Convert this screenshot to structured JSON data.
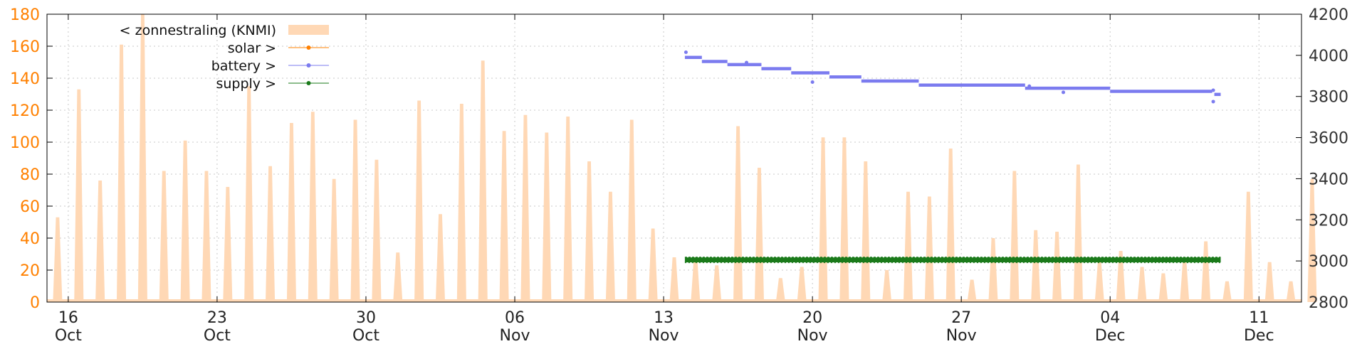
{
  "chart_data": {
    "type": "line",
    "title": "",
    "x_ticks": [
      {
        "day": "16",
        "month": "Oct",
        "date": "2023-10-16"
      },
      {
        "day": "23",
        "month": "Oct",
        "date": "2023-10-23"
      },
      {
        "day": "30",
        "month": "Oct",
        "date": "2023-10-30"
      },
      {
        "day": "06",
        "month": "Nov",
        "date": "2023-11-06"
      },
      {
        "day": "13",
        "month": "Nov",
        "date": "2023-11-13"
      },
      {
        "day": "20",
        "month": "Nov",
        "date": "2023-11-20"
      },
      {
        "day": "27",
        "month": "Nov",
        "date": "2023-11-27"
      },
      {
        "day": "04",
        "month": "Dec",
        "date": "2023-12-04"
      },
      {
        "day": "11",
        "month": "Dec",
        "date": "2023-12-11"
      }
    ],
    "x_range": [
      "2023-10-15",
      "2023-12-13"
    ],
    "y_left": {
      "range": [
        0,
        180
      ],
      "ticks": [
        "0",
        "20",
        "40",
        "60",
        "80",
        "100",
        "120",
        "140",
        "160",
        "180"
      ],
      "color": "#ff8000"
    },
    "y_right": {
      "range": [
        2800,
        4200
      ],
      "ticks": [
        "2800",
        "3000",
        "3200",
        "3400",
        "3600",
        "3800",
        "4000",
        "4200"
      ]
    },
    "grid": true,
    "legend": {
      "placement": "top-left",
      "entries": [
        {
          "label": "< zonnestraling (KNMI)",
          "style": "fill",
          "color": "#ffd8b5"
        },
        {
          "label": "solar >",
          "style": "line-point",
          "color": "#ff8000"
        },
        {
          "label": "battery >",
          "style": "line-point",
          "color": "#7b7bef"
        },
        {
          "label": "supply >",
          "style": "line-point",
          "color": "#1a7a1a"
        }
      ]
    },
    "series": [
      {
        "name": "zonnestraling (KNMI)",
        "axis": "left",
        "kind": "daily-peak",
        "color": "#ffd8b5",
        "dates": [
          "2023-10-15",
          "2023-10-16",
          "2023-10-17",
          "2023-10-18",
          "2023-10-19",
          "2023-10-20",
          "2023-10-21",
          "2023-10-22",
          "2023-10-23",
          "2023-10-24",
          "2023-10-25",
          "2023-10-26",
          "2023-10-27",
          "2023-10-28",
          "2023-10-29",
          "2023-10-30",
          "2023-10-31",
          "2023-11-01",
          "2023-11-02",
          "2023-11-03",
          "2023-11-04",
          "2023-11-05",
          "2023-11-06",
          "2023-11-07",
          "2023-11-08",
          "2023-11-09",
          "2023-11-10",
          "2023-11-11",
          "2023-11-12",
          "2023-11-13",
          "2023-11-14",
          "2023-11-15",
          "2023-11-16",
          "2023-11-17",
          "2023-11-18",
          "2023-11-19",
          "2023-11-20",
          "2023-11-21",
          "2023-11-22",
          "2023-11-23",
          "2023-11-24",
          "2023-11-25",
          "2023-11-26",
          "2023-11-27",
          "2023-11-28",
          "2023-11-29",
          "2023-11-30",
          "2023-12-01",
          "2023-12-02",
          "2023-12-03",
          "2023-12-04",
          "2023-12-05",
          "2023-12-06",
          "2023-12-07",
          "2023-12-08",
          "2023-12-09",
          "2023-12-10",
          "2023-12-11",
          "2023-12-12",
          "2023-12-13"
        ],
        "values": [
          53,
          133,
          76,
          161,
          180,
          82,
          101,
          82,
          72,
          135,
          85,
          112,
          119,
          77,
          114,
          89,
          31,
          126,
          55,
          124,
          151,
          107,
          117,
          106,
          116,
          88,
          69,
          114,
          46,
          28,
          28,
          23,
          110,
          84,
          15,
          22,
          103,
          103,
          88,
          20,
          69,
          66,
          96,
          14,
          40,
          82,
          45,
          44,
          86,
          25,
          32,
          22,
          18,
          27,
          38,
          13,
          69,
          25,
          13,
          77
        ]
      },
      {
        "name": "solar",
        "axis": "right",
        "color": "#ff8000",
        "points": []
      },
      {
        "name": "battery",
        "axis": "right",
        "color": "#7b7bef",
        "segments": [
          {
            "start": "2023-11-14",
            "end": "2023-11-14.8",
            "value": 3990
          },
          {
            "start": "2023-11-14.8",
            "end": "2023-11-16",
            "value": 3970
          },
          {
            "start": "2023-11-16",
            "end": "2023-11-17.6",
            "value": 3955
          },
          {
            "start": "2023-11-17.6",
            "end": "2023-11-19",
            "value": 3935
          },
          {
            "start": "2023-11-19",
            "end": "2023-11-20.8",
            "value": 3915
          },
          {
            "start": "2023-11-20.8",
            "end": "2023-11-22.3",
            "value": 3895
          },
          {
            "start": "2023-11-22.3",
            "end": "2023-11-25",
            "value": 3875
          },
          {
            "start": "2023-11-25",
            "end": "2023-11-30",
            "value": 3855
          },
          {
            "start": "2023-11-30",
            "end": "2023-12-04",
            "value": 3840
          },
          {
            "start": "2023-12-04",
            "end": "2023-12-08.8",
            "value": 3825
          },
          {
            "start": "2023-12-08.9",
            "end": "2023-12-09.2",
            "value": 3810
          }
        ],
        "outliers": [
          {
            "date": "2023-11-14.05",
            "value": 4015
          },
          {
            "date": "2023-11-16.9",
            "value": 3965
          },
          {
            "date": "2023-11-20",
            "value": 3870
          },
          {
            "date": "2023-11-30.2",
            "value": 3850
          },
          {
            "date": "2023-12-01.8",
            "value": 3820
          },
          {
            "date": "2023-12-08.85",
            "value": 3830
          },
          {
            "date": "2023-12-08.85",
            "value": 3775
          }
        ]
      },
      {
        "name": "supply",
        "axis": "right",
        "color": "#1a7a1a",
        "range": [
          "2023-11-14",
          "2023-12-09.2"
        ],
        "value_band": [
          3000,
          3010
        ]
      }
    ]
  }
}
